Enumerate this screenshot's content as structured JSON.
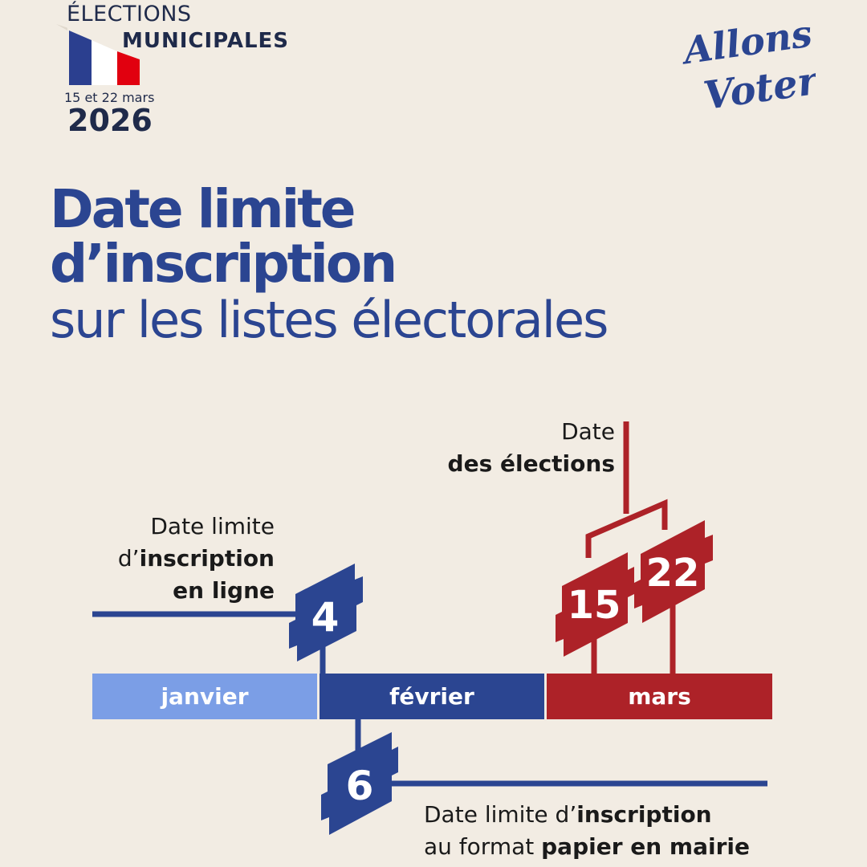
{
  "logo": {
    "line1": "ÉLECTIONS",
    "line2": "MUNICIPALES",
    "dates": "15 et 22 mars",
    "year": "2026",
    "flag_colors": [
      "#2b3f8f",
      "#ffffff",
      "#e1000f"
    ]
  },
  "badge": {
    "text": "Allons Voter!",
    "color": "#2b4591"
  },
  "title": {
    "line1": "Date limite",
    "line2": "d’inscription",
    "line3": "sur les listes électorales"
  },
  "timeline": {
    "months": [
      {
        "label": "janvier",
        "color": "#7b9ee6"
      },
      {
        "label": "février",
        "color": "#2b4591"
      },
      {
        "label": "mars",
        "color": "#ad2228"
      }
    ],
    "events": [
      {
        "day": "4",
        "label_plain_1": "Date limite",
        "label_plain_2": "d’",
        "label_bold_2": "inscription",
        "label_bold_3": "en ligne",
        "color": "#2b4591"
      },
      {
        "day": "6",
        "label_plain_1": "Date limite d’",
        "label_bold_1": "inscription",
        "label_plain_2": "au format ",
        "label_bold_2": "papier en mairie",
        "color": "#2b4591"
      },
      {
        "day": "15",
        "color": "#ad2228"
      },
      {
        "day": "22",
        "color": "#ad2228"
      }
    ],
    "election_label": {
      "plain": "Date",
      "bold": "des élections"
    }
  }
}
